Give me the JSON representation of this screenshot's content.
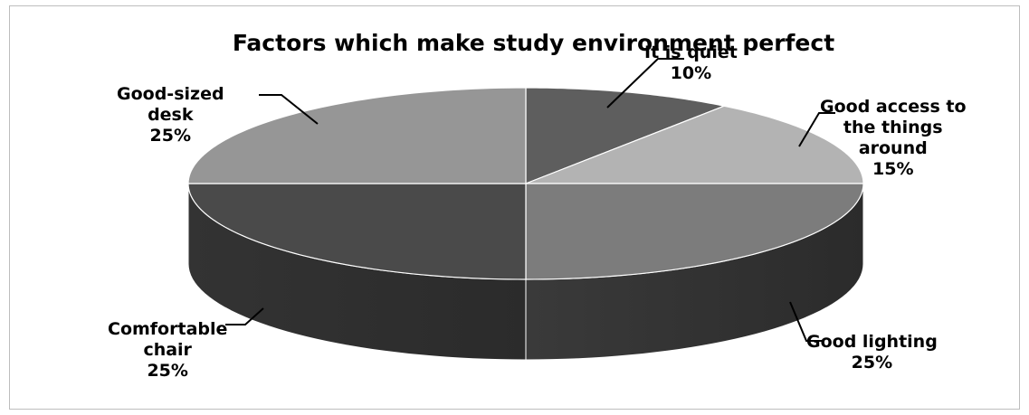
{
  "chart_data": {
    "type": "pie",
    "title": "Factors which make study environment perfect",
    "slices": [
      {
        "label_lines": [
          "It is quiet"
        ],
        "value": 10,
        "value_label": "10%",
        "color": "#5e5e5e",
        "side": "#3a3a3a"
      },
      {
        "label_lines": [
          "Good access to",
          "the things",
          "around"
        ],
        "value": 15,
        "value_label": "15%",
        "color": "#b3b3b3",
        "side": "#8a8a8a"
      },
      {
        "label_lines": [
          "Good lighting"
        ],
        "value": 25,
        "value_label": "25%",
        "color": "#7c7c7c",
        "side": "#3a3a3a"
      },
      {
        "label_lines": [
          "Comfortable",
          "chair"
        ],
        "value": 25,
        "value_label": "25%",
        "color": "#4a4a4a",
        "side": "#333333"
      },
      {
        "label_lines": [
          "Good-sized",
          "desk"
        ],
        "value": 25,
        "value_label": "25%",
        "color": "#969696",
        "side": "#6a6a6a"
      }
    ],
    "legend": "none",
    "style": "3d-pie"
  }
}
